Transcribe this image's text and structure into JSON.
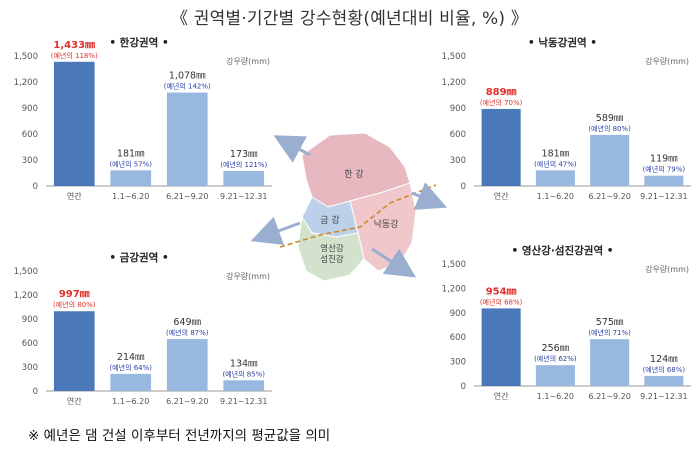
{
  "title": "《 권역별·기간별 강수현황(예년대비 비율, %) 》",
  "footnote": "※ 예년은 댐 건설 이후부터 전년까지의 평균값을 의미",
  "colors": {
    "annual_bar": "#4a78b8",
    "period_bar": "#98b8df",
    "annual_value_text": "#e0322b",
    "ratio_text": "#2a3fa6",
    "map_han": "#e8b8c0",
    "map_nakdong": "#f0c8cc",
    "map_geum": "#bcd0ea",
    "map_yeongsan": "#d2e2cc",
    "arrow": "#9aaed0"
  },
  "map": {
    "labels": {
      "han": "한 강",
      "geum": "금 강",
      "nakdong": "낙동강",
      "yeongsan_1": "영산강",
      "yeongsan_2": "섬진강"
    }
  },
  "chart_data": [
    {
      "id": "han",
      "type": "bar",
      "title": "한강권역",
      "unit_label": "강우량(mm)",
      "categories": [
        "연간",
        "1.1~6.20",
        "6.21~9.20",
        "9.21~12.31"
      ],
      "values": [
        1433,
        181,
        1078,
        173
      ],
      "value_labels": [
        "1,433㎜",
        "181㎜",
        "1,078㎜",
        "173㎜"
      ],
      "ratio_labels": [
        "(예년의 118%)",
        "(예년의 57%)",
        "(예년의 142%)",
        "(예년의 121%)"
      ],
      "yticks": [
        "1,500",
        "1,200",
        "900",
        "600",
        "300",
        "0"
      ],
      "ylim": [
        0,
        1500
      ]
    },
    {
      "id": "nakdong",
      "type": "bar",
      "title": "낙동강권역",
      "unit_label": "강우량(mm)",
      "categories": [
        "연간",
        "1.1~6.20",
        "6.21~9.20",
        "9.21~12.31"
      ],
      "values": [
        889,
        181,
        589,
        119
      ],
      "value_labels": [
        "889㎜",
        "181㎜",
        "589㎜",
        "119㎜"
      ],
      "ratio_labels": [
        "(예년의 70%)",
        "(예년의 47%)",
        "(예년의 80%)",
        "(예년의 79%)"
      ],
      "yticks": [
        "1,500",
        "1,200",
        "900",
        "600",
        "300",
        "0"
      ],
      "ylim": [
        0,
        1500
      ]
    },
    {
      "id": "geum",
      "type": "bar",
      "title": "금강권역",
      "unit_label": "강우량(mm)",
      "categories": [
        "연간",
        "1.1~6.20",
        "6.21~9.20",
        "9.21~12.31"
      ],
      "values": [
        997,
        214,
        649,
        134
      ],
      "value_labels": [
        "997㎜",
        "214㎜",
        "649㎜",
        "134㎜"
      ],
      "ratio_labels": [
        "(예년의 80%)",
        "(예년의 64%)",
        "(예년의 87%)",
        "(예년의 85%)"
      ],
      "yticks": [
        "1,500",
        "1,200",
        "900",
        "600",
        "300",
        "0"
      ],
      "ylim": [
        0,
        1500
      ]
    },
    {
      "id": "yeongsan",
      "type": "bar",
      "title": "영산강·섬진강권역",
      "unit_label": "강우량(mm)",
      "categories": [
        "연간",
        "1.1~6.20",
        "6.21~9.20",
        "9.21~12.31"
      ],
      "values": [
        954,
        256,
        575,
        124
      ],
      "value_labels": [
        "954㎜",
        "256㎜",
        "575㎜",
        "124㎜"
      ],
      "ratio_labels": [
        "(예년의 68%)",
        "(예년의 62%)",
        "(예년의 71%)",
        "(예년의 68%)"
      ],
      "yticks": [
        "1,500",
        "1,200",
        "900",
        "600",
        "300",
        "0"
      ],
      "ylim": [
        0,
        1500
      ]
    }
  ]
}
